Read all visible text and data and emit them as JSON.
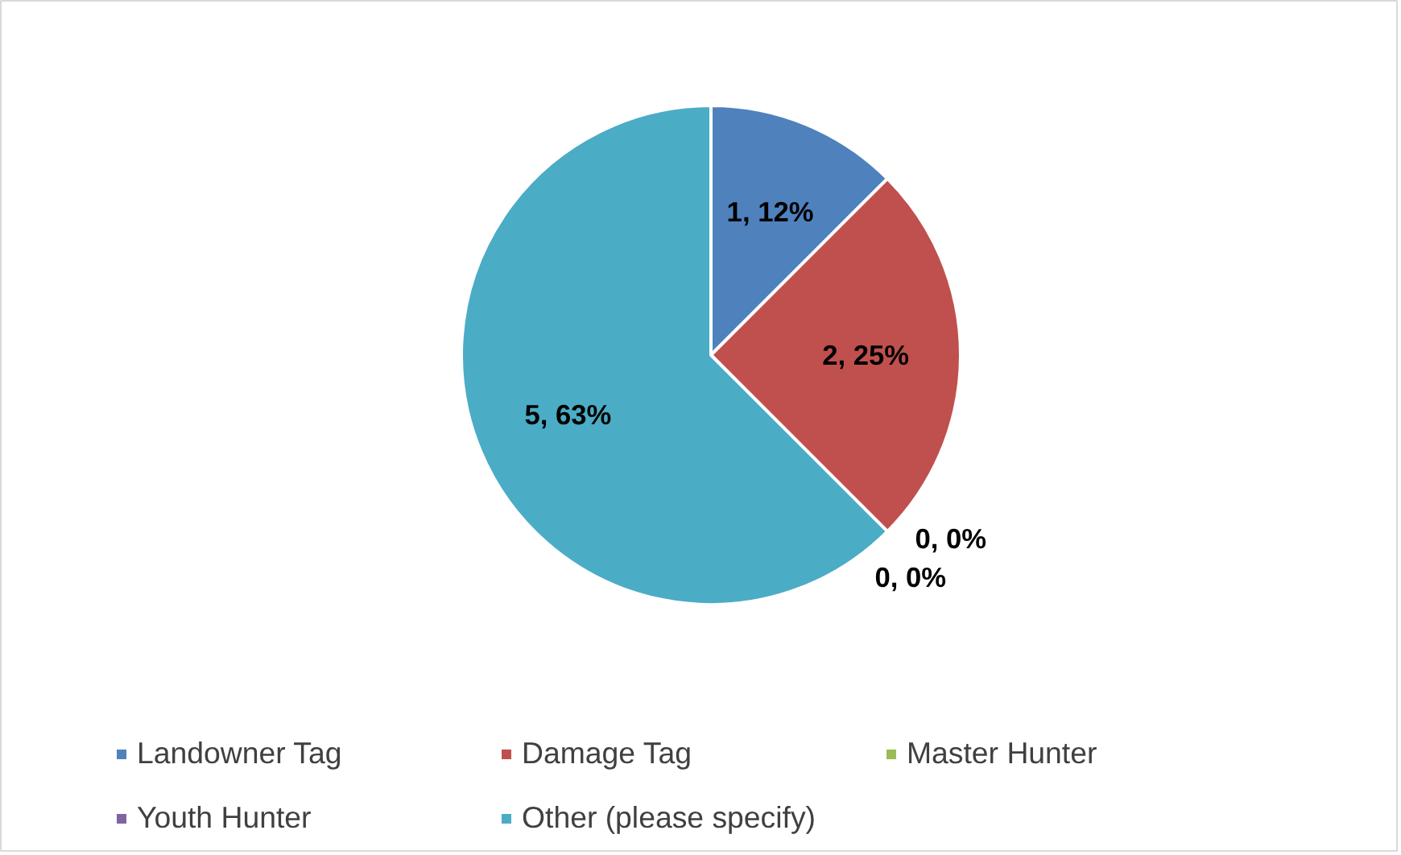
{
  "chart_data": {
    "type": "pie",
    "categories": [
      "Landowner Tag",
      "Damage Tag",
      "Master Hunter",
      "Youth Hunter",
      "Other (please specify)"
    ],
    "values": [
      1,
      2,
      0,
      0,
      5
    ],
    "colors": [
      "#4f81bd",
      "#c0504d",
      "#9bbb59",
      "#8064a2",
      "#4bacc6"
    ],
    "value_labels": [
      "1, 12%",
      "2, 25%",
      "0, 0%",
      "0, 0%",
      "5, 63%"
    ],
    "legend": "bottom"
  }
}
